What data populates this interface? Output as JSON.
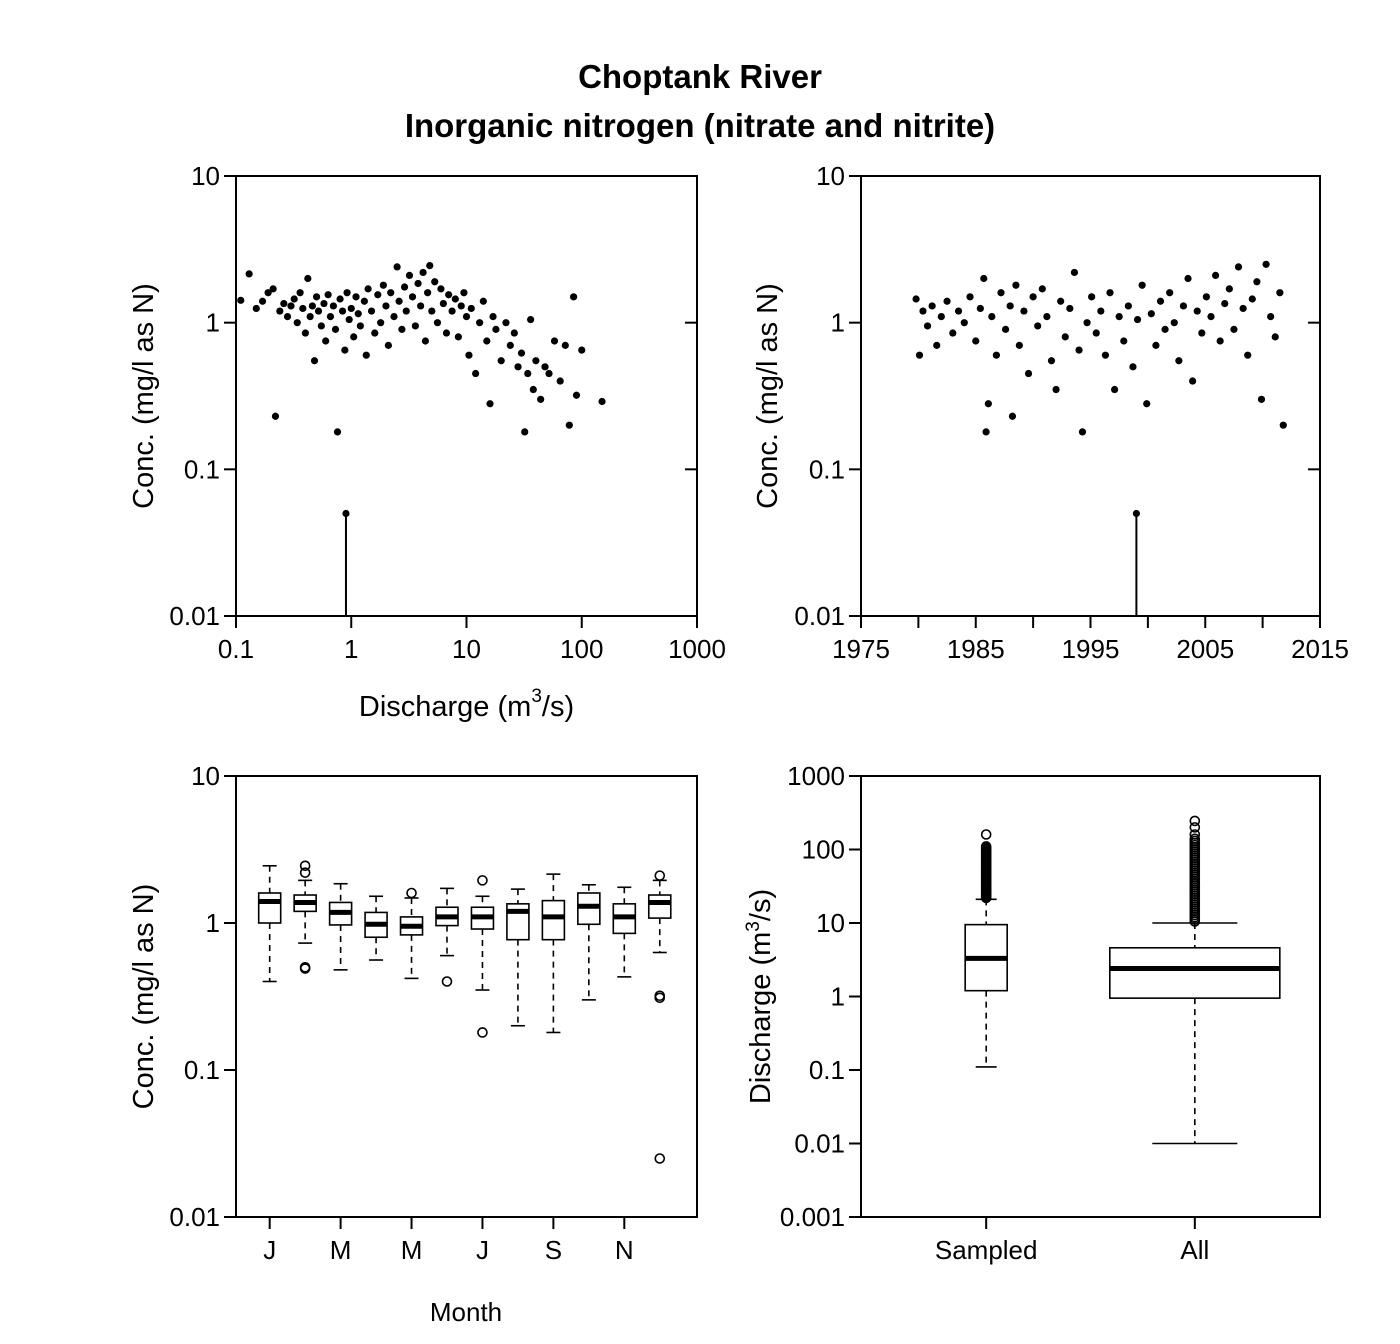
{
  "figure": {
    "title_line1": "Choptank River",
    "title_line2": "Inorganic nitrogen (nitrate and nitrite)"
  },
  "chart_data": [
    {
      "id": "conc-vs-discharge",
      "type": "scatter",
      "xlabel_pre": "Discharge (m",
      "xlabel_sup": "3",
      "xlabel_post": "/s)",
      "ylabel": "Conc. (mg/l as N)",
      "x_scale": "log",
      "y_scale": "log",
      "xlim": [
        0.1,
        1000
      ],
      "ylim": [
        0.01,
        10
      ],
      "x_ticks": [
        "0.1",
        "1",
        "10",
        "100",
        "1000"
      ],
      "y_ticks": [
        "0.01",
        "0.1",
        "1",
        "10"
      ],
      "points": [
        [
          0.11,
          1.42
        ],
        [
          0.13,
          2.15
        ],
        [
          0.15,
          1.25
        ],
        [
          0.17,
          1.4
        ],
        [
          0.19,
          1.6
        ],
        [
          0.21,
          1.7
        ],
        [
          0.22,
          0.23
        ],
        [
          0.24,
          1.2
        ],
        [
          0.26,
          1.35
        ],
        [
          0.28,
          1.1
        ],
        [
          0.3,
          1.3
        ],
        [
          0.32,
          1.45
        ],
        [
          0.34,
          1.0
        ],
        [
          0.36,
          1.6
        ],
        [
          0.38,
          1.25
        ],
        [
          0.4,
          0.85
        ],
        [
          0.42,
          2.0
        ],
        [
          0.44,
          1.1
        ],
        [
          0.46,
          1.3
        ],
        [
          0.48,
          0.55
        ],
        [
          0.5,
          1.5
        ],
        [
          0.52,
          1.2
        ],
        [
          0.55,
          0.95
        ],
        [
          0.58,
          1.35
        ],
        [
          0.6,
          0.75
        ],
        [
          0.63,
          1.55
        ],
        [
          0.66,
          1.1
        ],
        [
          0.7,
          1.3
        ],
        [
          0.73,
          0.9
        ],
        [
          0.76,
          0.18
        ],
        [
          0.8,
          1.45
        ],
        [
          0.84,
          1.2
        ],
        [
          0.88,
          0.65
        ],
        [
          0.92,
          1.6
        ],
        [
          0.96,
          1.05
        ],
        [
          1.0,
          1.25
        ],
        [
          1.05,
          0.8
        ],
        [
          1.1,
          1.5
        ],
        [
          1.15,
          1.15
        ],
        [
          1.2,
          0.95
        ],
        [
          1.3,
          1.4
        ],
        [
          1.35,
          0.6
        ],
        [
          1.4,
          1.7
        ],
        [
          1.5,
          1.2
        ],
        [
          1.6,
          0.85
        ],
        [
          1.7,
          1.55
        ],
        [
          1.8,
          1.0
        ],
        [
          1.9,
          1.8
        ],
        [
          2.0,
          1.3
        ],
        [
          2.1,
          0.7
        ],
        [
          2.2,
          1.6
        ],
        [
          2.35,
          1.1
        ],
        [
          2.5,
          2.4
        ],
        [
          2.6,
          1.4
        ],
        [
          2.75,
          0.9
        ],
        [
          2.9,
          1.75
        ],
        [
          3.0,
          1.2
        ],
        [
          3.2,
          2.1
        ],
        [
          3.4,
          1.5
        ],
        [
          3.6,
          0.95
        ],
        [
          3.8,
          1.85
        ],
        [
          4.0,
          1.3
        ],
        [
          4.2,
          2.2
        ],
        [
          4.4,
          0.75
        ],
        [
          4.6,
          1.6
        ],
        [
          4.8,
          2.45
        ],
        [
          5.0,
          1.2
        ],
        [
          5.3,
          1.9
        ],
        [
          5.6,
          1.0
        ],
        [
          6.0,
          1.7
        ],
        [
          6.3,
          1.35
        ],
        [
          6.7,
          0.85
        ],
        [
          7.0,
          1.55
        ],
        [
          7.5,
          1.2
        ],
        [
          8.0,
          1.45
        ],
        [
          8.5,
          0.8
        ],
        [
          9.0,
          1.3
        ],
        [
          9.5,
          1.6
        ],
        [
          10.0,
          1.1
        ],
        [
          10.5,
          0.6
        ],
        [
          11.0,
          1.25
        ],
        [
          12.0,
          0.45
        ],
        [
          13.0,
          1.0
        ],
        [
          14.0,
          1.4
        ],
        [
          15.0,
          0.75
        ],
        [
          16.0,
          0.28
        ],
        [
          17.0,
          1.1
        ],
        [
          18.0,
          0.9
        ],
        [
          20.0,
          0.55
        ],
        [
          22.0,
          1.0
        ],
        [
          24.0,
          0.7
        ],
        [
          26.0,
          0.85
        ],
        [
          28.0,
          0.5
        ],
        [
          30.0,
          0.62
        ],
        [
          32.0,
          0.18
        ],
        [
          34.0,
          0.45
        ],
        [
          36.0,
          1.05
        ],
        [
          38.0,
          0.35
        ],
        [
          40.0,
          0.55
        ],
        [
          44.0,
          0.3
        ],
        [
          48.0,
          0.5
        ],
        [
          52.0,
          0.45
        ],
        [
          58.0,
          0.75
        ],
        [
          65.0,
          0.4
        ],
        [
          72.0,
          0.7
        ],
        [
          78.0,
          0.2
        ],
        [
          85.0,
          1.5
        ],
        [
          90.0,
          0.32
        ],
        [
          100.0,
          0.65
        ],
        [
          150.0,
          0.29
        ],
        [
          0.9,
          0.05
        ]
      ],
      "censored": [
        {
          "x": 0.9,
          "y": 0.05
        }
      ]
    },
    {
      "id": "conc-vs-time",
      "type": "scatter",
      "xlabel": "",
      "ylabel": "Conc. (mg/l as N)",
      "x_scale": "linear",
      "y_scale": "log",
      "xlim": [
        1975,
        2015
      ],
      "ylim": [
        0.01,
        10
      ],
      "x_ticks": [
        "1975",
        "1985",
        "1995",
        "2005",
        "2015"
      ],
      "y_ticks": [
        "0.01",
        "0.1",
        "1",
        "10"
      ],
      "points": [
        [
          1979.8,
          1.45
        ],
        [
          1980.1,
          0.6
        ],
        [
          1980.4,
          1.2
        ],
        [
          1980.8,
          0.95
        ],
        [
          1981.2,
          1.3
        ],
        [
          1981.6,
          0.7
        ],
        [
          1982.0,
          1.1
        ],
        [
          1982.5,
          1.4
        ],
        [
          1983.0,
          0.85
        ],
        [
          1983.5,
          1.2
        ],
        [
          1984.0,
          1.0
        ],
        [
          1984.5,
          1.5
        ],
        [
          1985.0,
          0.75
        ],
        [
          1985.4,
          1.25
        ],
        [
          1985.7,
          2.0
        ],
        [
          1985.9,
          0.18
        ],
        [
          1986.1,
          0.28
        ],
        [
          1986.4,
          1.1
        ],
        [
          1986.8,
          0.6
        ],
        [
          1987.2,
          1.6
        ],
        [
          1987.6,
          0.9
        ],
        [
          1988.0,
          1.3
        ],
        [
          1988.2,
          0.23
        ],
        [
          1988.5,
          1.8
        ],
        [
          1988.8,
          0.7
        ],
        [
          1989.2,
          1.2
        ],
        [
          1989.6,
          0.45
        ],
        [
          1990.0,
          1.5
        ],
        [
          1990.4,
          0.95
        ],
        [
          1990.8,
          1.7
        ],
        [
          1991.2,
          1.1
        ],
        [
          1991.6,
          0.55
        ],
        [
          1992.0,
          0.35
        ],
        [
          1992.4,
          1.4
        ],
        [
          1992.8,
          0.8
        ],
        [
          1993.2,
          1.25
        ],
        [
          1993.6,
          2.2
        ],
        [
          1994.0,
          0.65
        ],
        [
          1994.3,
          0.18
        ],
        [
          1994.7,
          1.0
        ],
        [
          1995.1,
          1.5
        ],
        [
          1995.5,
          0.85
        ],
        [
          1995.9,
          1.2
        ],
        [
          1996.3,
          0.6
        ],
        [
          1996.7,
          1.6
        ],
        [
          1997.1,
          0.35
        ],
        [
          1997.5,
          1.1
        ],
        [
          1997.9,
          0.75
        ],
        [
          1998.3,
          1.3
        ],
        [
          1998.7,
          0.5
        ],
        [
          1999.1,
          1.05
        ],
        [
          1999.5,
          1.8
        ],
        [
          1999.9,
          0.28
        ],
        [
          2000.3,
          1.15
        ],
        [
          2000.7,
          0.7
        ],
        [
          2001.1,
          1.4
        ],
        [
          2001.5,
          0.9
        ],
        [
          2001.9,
          1.6
        ],
        [
          2002.3,
          1.0
        ],
        [
          2002.7,
          0.55
        ],
        [
          2003.1,
          1.3
        ],
        [
          2003.5,
          2.0
        ],
        [
          2003.9,
          0.4
        ],
        [
          2004.3,
          1.2
        ],
        [
          2004.7,
          0.85
        ],
        [
          2005.1,
          1.5
        ],
        [
          2005.5,
          1.1
        ],
        [
          2005.9,
          2.1
        ],
        [
          2006.3,
          0.75
        ],
        [
          2006.7,
          1.35
        ],
        [
          2007.1,
          1.7
        ],
        [
          2007.5,
          0.9
        ],
        [
          2007.9,
          2.4
        ],
        [
          2008.3,
          1.25
        ],
        [
          2008.7,
          0.6
        ],
        [
          2009.1,
          1.45
        ],
        [
          2009.5,
          1.9
        ],
        [
          2009.9,
          0.3
        ],
        [
          2010.3,
          2.5
        ],
        [
          2010.7,
          1.1
        ],
        [
          2011.1,
          0.8
        ],
        [
          2011.5,
          1.6
        ],
        [
          2011.8,
          0.2
        ],
        [
          1999.0,
          0.05
        ]
      ],
      "censored": [
        {
          "x": 1999.0,
          "y": 0.05
        }
      ]
    },
    {
      "id": "conc-by-month",
      "type": "box",
      "xlabel": "Month",
      "ylabel": "Conc. (mg/l as N)",
      "y_scale": "log",
      "ylim": [
        0.01,
        10
      ],
      "y_ticks": [
        "0.01",
        "0.1",
        "1",
        "10"
      ],
      "x_tick_labels": [
        "J",
        "M",
        "M",
        "J",
        "S",
        "N"
      ],
      "x_tick_positions": [
        1,
        3,
        5,
        7,
        9,
        11
      ],
      "boxes": [
        {
          "pos": 1,
          "lo": 0.4,
          "q1": 1.0,
          "med": 1.4,
          "q3": 1.6,
          "hi": 2.45,
          "outliers": []
        },
        {
          "pos": 2,
          "lo": 0.73,
          "q1": 1.2,
          "med": 1.38,
          "q3": 1.55,
          "hi": 1.95,
          "outliers": [
            0.5,
            0.49,
            2.2,
            2.45
          ]
        },
        {
          "pos": 3,
          "lo": 0.48,
          "q1": 0.97,
          "med": 1.18,
          "q3": 1.38,
          "hi": 1.85,
          "outliers": []
        },
        {
          "pos": 4,
          "lo": 0.56,
          "q1": 0.8,
          "med": 0.98,
          "q3": 1.18,
          "hi": 1.52,
          "outliers": []
        },
        {
          "pos": 5,
          "lo": 0.42,
          "q1": 0.83,
          "med": 0.95,
          "q3": 1.1,
          "hi": 1.48,
          "outliers": [
            1.6
          ]
        },
        {
          "pos": 6,
          "lo": 0.6,
          "q1": 0.96,
          "med": 1.1,
          "q3": 1.28,
          "hi": 1.72,
          "outliers": [
            0.4
          ]
        },
        {
          "pos": 7,
          "lo": 0.35,
          "q1": 0.91,
          "med": 1.1,
          "q3": 1.28,
          "hi": 1.52,
          "outliers": [
            0.18,
            1.95
          ]
        },
        {
          "pos": 8,
          "lo": 0.2,
          "q1": 0.77,
          "med": 1.2,
          "q3": 1.35,
          "hi": 1.7,
          "outliers": []
        },
        {
          "pos": 9,
          "lo": 0.18,
          "q1": 0.77,
          "med": 1.1,
          "q3": 1.42,
          "hi": 2.15,
          "outliers": []
        },
        {
          "pos": 10,
          "lo": 0.3,
          "q1": 0.98,
          "med": 1.3,
          "q3": 1.6,
          "hi": 1.82,
          "outliers": []
        },
        {
          "pos": 11,
          "lo": 0.43,
          "q1": 0.85,
          "med": 1.1,
          "q3": 1.35,
          "hi": 1.75,
          "outliers": []
        },
        {
          "pos": 12,
          "lo": 0.63,
          "q1": 1.08,
          "med": 1.38,
          "q3": 1.55,
          "hi": 1.95,
          "outliers": [
            0.32,
            0.31,
            0.025,
            2.1
          ]
        }
      ]
    },
    {
      "id": "discharge-sampled-vs-all",
      "type": "box",
      "xlabel": "",
      "ylabel_pre": "Discharge (m",
      "ylabel_sup": "3",
      "ylabel_post": "/s)",
      "y_scale": "log",
      "ylim": [
        0.001,
        1000
      ],
      "y_ticks": [
        "0.001",
        "0.01",
        "0.1",
        "1",
        "10",
        "100",
        "1000"
      ],
      "categories": [
        "Sampled",
        "All"
      ],
      "boxes": [
        {
          "pos": 1,
          "lo": 0.11,
          "q1": 1.2,
          "med": 3.3,
          "q3": 9.5,
          "hi": 21,
          "outliers_from": 22,
          "outliers_to": 110,
          "outliers": [
            160
          ]
        },
        {
          "pos": 2,
          "lo": 0.01,
          "q1": 0.95,
          "med": 2.4,
          "q3": 4.6,
          "hi": 10,
          "outliers_from": 10.5,
          "outliers_to": 140,
          "outliers": [
            160,
            200,
            245
          ]
        }
      ]
    }
  ]
}
